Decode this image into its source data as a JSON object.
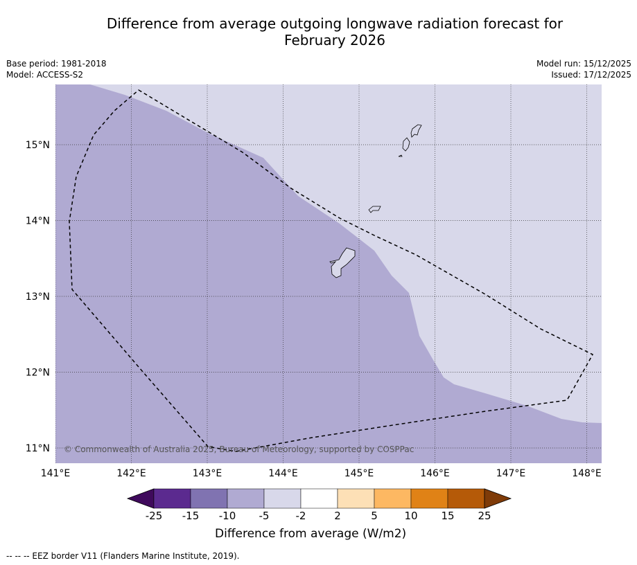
{
  "title_line1": "Difference from average outgoing longwave radiation forecast for",
  "title_line2": "February 2026",
  "base_period": "Base period: 1981-2018",
  "model": "Model: ACCESS-S2",
  "model_run": "Model run: 15/12/2025",
  "issued": "Issued: 17/12/2025",
  "copyright": "© Commonwealth of Australia 2025, Bureau of Meteorology, supported by COSPPac",
  "footnote": "--  --  -- EEZ border V11 (Flanders Marine Institute, 2019).",
  "lon_labels": [
    "141°E",
    "142°E",
    "143°E",
    "144°E",
    "145°E",
    "146°E",
    "147°E",
    "148°E"
  ],
  "lat_labels": [
    "15°N",
    "14°N",
    "13°N",
    "12°N",
    "11°N"
  ],
  "colorbar": {
    "title": "Difference from average (W/m2)",
    "ticks": [
      "-25",
      "-15",
      "-10",
      "-5",
      "-2",
      "2",
      "5",
      "10",
      "15",
      "25"
    ],
    "colors": {
      "below_min": "#3f0a5c",
      "b1": "#5b2a8f",
      "b2": "#8073b1",
      "b3": "#b0aad2",
      "b4": "#d8d8ea",
      "b5": "#ffffff",
      "b6": "#fde0b6",
      "b7": "#fdb862",
      "b8": "#e08216",
      "b9": "#b55a08",
      "above_max": "#7f3b08"
    }
  },
  "map_colors": {
    "band_minus10_minus5": "#b0aad2",
    "band_minus5_minus2": "#d8d8ea"
  }
}
